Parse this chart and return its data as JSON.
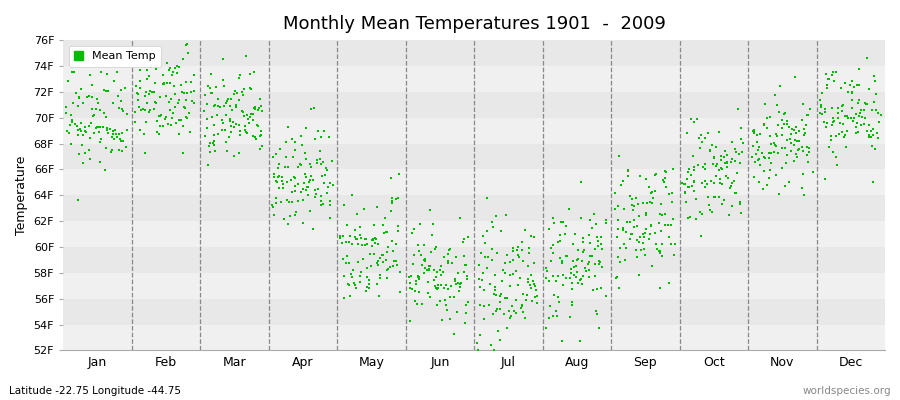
{
  "title": "Monthly Mean Temperatures 1901  -  2009",
  "ylabel": "Temperature",
  "xlabel_months": [
    "Jan",
    "Feb",
    "Mar",
    "Apr",
    "May",
    "Jun",
    "Jul",
    "Aug",
    "Sep",
    "Oct",
    "Nov",
    "Dec"
  ],
  "legend_label": "Mean Temp",
  "bottom_left": "Latitude -22.75 Longitude -44.75",
  "bottom_right": "worldspecies.org",
  "ylim": [
    52,
    76
  ],
  "yticks": [
    52,
    54,
    56,
    58,
    60,
    62,
    64,
    66,
    68,
    70,
    72,
    74,
    76
  ],
  "ytick_labels": [
    "52F",
    "54F",
    "56F",
    "58F",
    "60F",
    "62F",
    "64F",
    "66F",
    "68F",
    "70F",
    "72F",
    "74F",
    "76F"
  ],
  "dot_color": "#00bb00",
  "bg_color": "#ffffff",
  "band_colors": [
    "#f0f0f0",
    "#e8e8e8"
  ],
  "years": 109,
  "start_year": 1901,
  "end_year": 2009,
  "monthly_means_F": [
    69.8,
    71.5,
    70.0,
    65.3,
    60.0,
    58.0,
    57.2,
    58.5,
    62.0,
    65.5,
    68.0,
    70.5
  ],
  "monthly_stds_F": [
    2.0,
    1.8,
    1.8,
    2.0,
    2.2,
    2.0,
    2.0,
    2.2,
    2.2,
    2.2,
    2.0,
    1.8
  ],
  "marker_size": 3,
  "dpi": 100,
  "figsize": [
    9.0,
    4.0
  ]
}
